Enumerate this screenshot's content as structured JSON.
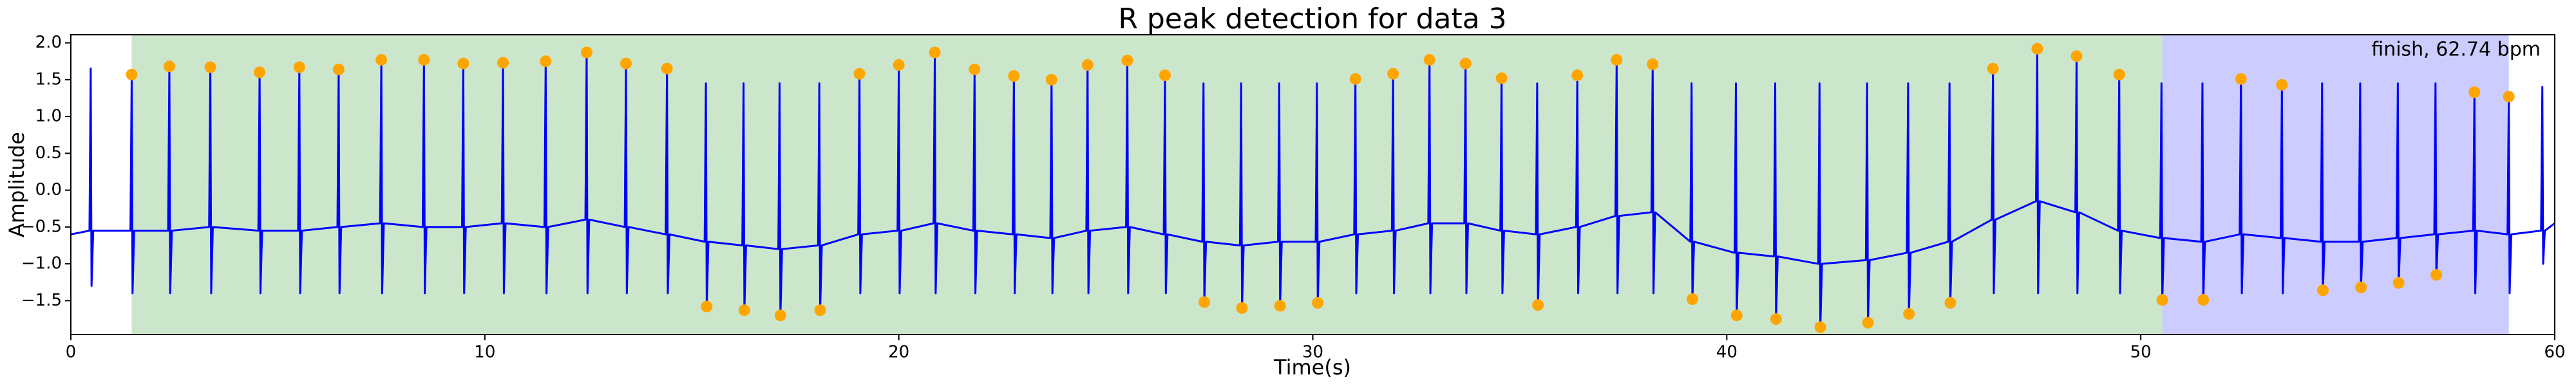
{
  "chart_data": {
    "type": "line",
    "title": "R peak detection for data 3",
    "xlabel": "Time(s)",
    "ylabel": "Amplitude",
    "annotation": "finish, 62.74 bpm",
    "xlim": [
      0,
      60
    ],
    "ylim": [
      -1.96,
      2.11
    ],
    "xticks": [
      0,
      10,
      20,
      30,
      40,
      50,
      60
    ],
    "yticks": [
      {
        "value": -1.5,
        "label": "−1.5"
      },
      {
        "value": -1.0,
        "label": "−1.0"
      },
      {
        "value": -0.5,
        "label": "−0.5"
      },
      {
        "value": 0,
        "label": "0.0"
      },
      0.5,
      {
        "value": 1.0,
        "label": "1.0"
      },
      1.5,
      {
        "value": 2.0,
        "label": "2.0"
      }
    ],
    "spans": [
      {
        "start": 1.47,
        "end": 50.52,
        "color": "#008000"
      },
      {
        "start": 50.52,
        "end": 58.89,
        "color": "#0000ff"
      }
    ],
    "series": [
      {
        "type": "line",
        "color": "#0000ff",
        "x": [
          0,
          0.45,
          0.48,
          0.5,
          0.54,
          1.44,
          1.47,
          1.49,
          1.53,
          2.35,
          2.38,
          2.4,
          2.44,
          3.34,
          3.37,
          3.39,
          3.43,
          4.53,
          4.56,
          4.58,
          4.62,
          5.49,
          5.52,
          5.54,
          5.58,
          6.44,
          6.47,
          6.49,
          6.53,
          7.47,
          7.5,
          7.52,
          7.56,
          8.5,
          8.53,
          8.55,
          8.59,
          9.45,
          9.48,
          9.5,
          9.54,
          10.41,
          10.44,
          10.46,
          10.5,
          11.44,
          11.47,
          11.49,
          11.53,
          12.43,
          12.46,
          12.48,
          12.52,
          13.38,
          13.41,
          13.43,
          13.47,
          14.37,
          14.4,
          14.42,
          14.46,
          15.31,
          15.34,
          15.36,
          15.4,
          16.22,
          16.25,
          16.27,
          16.31,
          17.09,
          17.12,
          17.14,
          17.18,
          18.05,
          18.08,
          18.1,
          18.14,
          19.02,
          19.05,
          19.07,
          19.11,
          19.97,
          20,
          20.02,
          20.06,
          20.84,
          20.87,
          20.89,
          20.93,
          21.8,
          21.83,
          21.85,
          21.89,
          22.75,
          22.78,
          22.8,
          22.84,
          23.66,
          23.69,
          23.71,
          23.75,
          24.53,
          24.56,
          24.58,
          24.62,
          25.49,
          25.52,
          25.54,
          25.58,
          26.4,
          26.43,
          26.45,
          26.49,
          27.33,
          27.36,
          27.38,
          27.42,
          28.24,
          28.27,
          28.29,
          28.33,
          29.16,
          29.19,
          29.21,
          29.25,
          30.07,
          30.1,
          30.12,
          30.16,
          31,
          31.03,
          31.05,
          31.09,
          31.91,
          31.94,
          31.96,
          32,
          32.79,
          32.82,
          32.84,
          32.88,
          33.66,
          33.69,
          33.71,
          33.75,
          34.53,
          34.56,
          34.58,
          34.62,
          35.39,
          35.42,
          35.44,
          35.48,
          36.36,
          36.39,
          36.41,
          36.45,
          37.31,
          37.34,
          37.36,
          37.4,
          38.18,
          38.21,
          38.23,
          38.27,
          39.12,
          39.15,
          39.17,
          39.21,
          40.19,
          40.22,
          40.24,
          40.28,
          41.14,
          41.17,
          41.19,
          41.23,
          42.21,
          42.24,
          42.26,
          42.3,
          43.36,
          43.39,
          43.41,
          43.45,
          44.35,
          44.38,
          44.4,
          44.44,
          45.35,
          45.38,
          45.4,
          45.44,
          46.4,
          46.43,
          46.45,
          46.49,
          47.47,
          47.5,
          47.52,
          47.56,
          48.42,
          48.45,
          48.47,
          48.51,
          49.45,
          49.48,
          49.5,
          49.54,
          50.47,
          50.5,
          50.52,
          50.56,
          51.46,
          51.49,
          51.51,
          51.55,
          52.39,
          52.42,
          52.44,
          52.48,
          53.38,
          53.41,
          53.43,
          53.47,
          54.35,
          54.38,
          54.4,
          54.44,
          55.27,
          55.3,
          55.32,
          55.36,
          56.18,
          56.21,
          56.23,
          56.27,
          57.09,
          57.12,
          57.14,
          57.18,
          58.03,
          58.06,
          58.08,
          58.12,
          58.86,
          58.89,
          58.91,
          58.95,
          59.67,
          59.7,
          59.72,
          59.76,
          60
        ],
        "values": [
          -0.6,
          -0.55,
          1.65,
          -1.3,
          -0.55,
          -0.55,
          1.57,
          -1.4,
          -0.55,
          -0.55,
          1.68,
          -1.4,
          -0.55,
          -0.5,
          1.67,
          -1.4,
          -0.5,
          -0.55,
          1.6,
          -1.4,
          -0.55,
          -0.55,
          1.67,
          -1.4,
          -0.55,
          -0.5,
          1.64,
          -1.4,
          -0.5,
          -0.45,
          1.77,
          -1.4,
          -0.45,
          -0.5,
          1.77,
          -1.4,
          -0.5,
          -0.5,
          1.72,
          -1.4,
          -0.5,
          -0.45,
          1.73,
          -1.4,
          -0.45,
          -0.5,
          1.75,
          -1.4,
          -0.5,
          -0.4,
          1.87,
          -1.4,
          -0.4,
          -0.5,
          1.72,
          -1.4,
          -0.5,
          -0.6,
          1.65,
          -1.4,
          -0.6,
          -0.7,
          1.45,
          -1.58,
          -0.7,
          -0.75,
          1.45,
          -1.63,
          -0.75,
          -0.8,
          1.45,
          -1.7,
          -0.8,
          -0.75,
          1.45,
          -1.63,
          -0.75,
          -0.6,
          1.58,
          -1.4,
          -0.6,
          -0.55,
          1.7,
          -1.4,
          -0.55,
          -0.45,
          1.87,
          -1.4,
          -0.45,
          -0.55,
          1.64,
          -1.4,
          -0.55,
          -0.6,
          1.55,
          -1.4,
          -0.6,
          -0.65,
          1.5,
          -1.4,
          -0.65,
          -0.55,
          1.7,
          -1.4,
          -0.55,
          -0.5,
          1.76,
          -1.4,
          -0.5,
          -0.6,
          1.56,
          -1.4,
          -0.6,
          -0.7,
          1.45,
          -1.52,
          -0.7,
          -0.75,
          1.45,
          -1.6,
          -0.75,
          -0.7,
          1.45,
          -1.57,
          -0.7,
          -0.7,
          1.45,
          -1.53,
          -0.7,
          -0.6,
          1.51,
          -1.4,
          -0.6,
          -0.55,
          1.58,
          -1.4,
          -0.55,
          -0.45,
          1.77,
          -1.4,
          -0.45,
          -0.45,
          1.72,
          -1.4,
          -0.45,
          -0.55,
          1.52,
          -1.4,
          -0.55,
          -0.6,
          1.45,
          -1.56,
          -0.6,
          -0.5,
          1.56,
          -1.4,
          -0.5,
          -0.35,
          1.77,
          -1.4,
          -0.35,
          -0.3,
          1.71,
          -1.4,
          -0.3,
          -0.7,
          1.45,
          -1.48,
          -0.7,
          -0.85,
          1.45,
          -1.7,
          -0.85,
          -0.9,
          1.45,
          -1.75,
          -0.9,
          -1.0,
          1.45,
          -1.86,
          -1.0,
          -0.95,
          1.45,
          -1.8,
          -0.95,
          -0.85,
          1.45,
          -1.68,
          -0.85,
          -0.7,
          1.45,
          -1.53,
          -0.7,
          -0.4,
          1.65,
          -1.4,
          -0.4,
          -0.15,
          1.92,
          -1.4,
          -0.15,
          -0.3,
          1.82,
          -1.4,
          -0.3,
          -0.55,
          1.57,
          -1.4,
          -0.55,
          -0.65,
          1.45,
          -1.49,
          -0.65,
          -0.7,
          1.45,
          -1.49,
          -0.7,
          -0.6,
          1.51,
          -1.4,
          -0.6,
          -0.65,
          1.43,
          -1.4,
          -0.65,
          -0.7,
          1.45,
          -1.36,
          -0.7,
          -0.7,
          1.45,
          -1.32,
          -0.7,
          -0.65,
          1.45,
          -1.26,
          -0.65,
          -0.6,
          1.45,
          -1.15,
          -0.6,
          -0.55,
          1.33,
          -1.4,
          -0.55,
          -0.6,
          1.27,
          -1.4,
          -0.6,
          -0.55,
          1.4,
          -1.0,
          -0.55,
          -0.45
        ]
      },
      {
        "type": "scatter",
        "color": "#ffa500",
        "x": [
          1.47,
          2.38,
          3.37,
          4.56,
          5.52,
          6.47,
          7.5,
          8.53,
          9.48,
          10.44,
          11.47,
          12.46,
          13.41,
          14.4,
          15.36,
          16.27,
          17.14,
          18.1,
          19.05,
          20.0,
          20.87,
          21.83,
          22.78,
          23.69,
          24.56,
          25.52,
          26.43,
          27.38,
          28.29,
          29.21,
          30.12,
          31.03,
          31.94,
          32.82,
          33.69,
          34.56,
          35.44,
          36.39,
          37.34,
          38.21,
          39.17,
          40.24,
          41.19,
          42.26,
          43.41,
          44.4,
          45.4,
          46.43,
          47.5,
          48.45,
          49.48,
          50.52,
          51.51,
          52.42,
          53.41,
          54.4,
          55.32,
          56.23,
          57.14,
          58.06,
          58.89
        ],
        "values": [
          1.57,
          1.68,
          1.67,
          1.6,
          1.67,
          1.64,
          1.77,
          1.77,
          1.72,
          1.73,
          1.75,
          1.87,
          1.72,
          1.65,
          -1.58,
          -1.63,
          -1.7,
          -1.63,
          1.58,
          1.7,
          1.87,
          1.64,
          1.55,
          1.5,
          1.7,
          1.76,
          1.56,
          -1.52,
          -1.6,
          -1.57,
          -1.53,
          1.51,
          1.58,
          1.77,
          1.72,
          1.52,
          -1.56,
          1.56,
          1.77,
          1.71,
          -1.48,
          -1.7,
          -1.75,
          -1.86,
          -1.8,
          -1.68,
          -1.53,
          1.65,
          1.92,
          1.82,
          1.57,
          -1.49,
          -1.49,
          1.51,
          1.43,
          -1.36,
          -1.32,
          -1.26,
          -1.15,
          1.33,
          1.27
        ]
      }
    ]
  }
}
